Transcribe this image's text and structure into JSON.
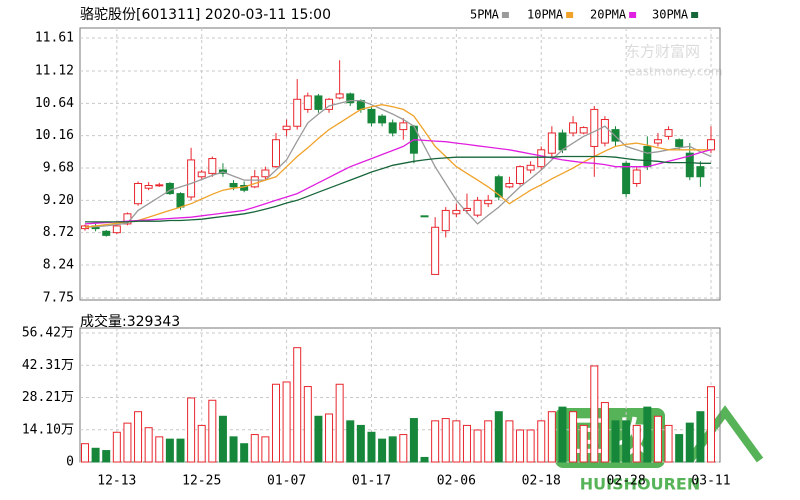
{
  "chart_data": {
    "type": "candlestick",
    "title": "骆驼股份[601311] 2020-03-11 15:00",
    "categories": [
      null,
      null,
      null,
      "12-13",
      null,
      null,
      null,
      null,
      null,
      null,
      null,
      "12-25",
      null,
      null,
      null,
      null,
      null,
      null,
      null,
      "01-07",
      null,
      null,
      null,
      null,
      null,
      null,
      null,
      "01-17",
      null,
      null,
      null,
      null,
      null,
      null,
      null,
      "02-06",
      null,
      null,
      null,
      null,
      null,
      null,
      null,
      "02-18",
      null,
      null,
      null,
      null,
      null,
      null,
      null,
      "02-28",
      null,
      null,
      null,
      null,
      null,
      null,
      null,
      "03-11"
    ],
    "open": [
      8.78,
      8.82,
      8.74,
      8.72,
      8.85,
      9.15,
      9.38,
      9.42,
      9.45,
      9.3,
      9.25,
      9.55,
      9.6,
      9.65,
      9.45,
      9.42,
      9.4,
      9.55,
      9.7,
      10.25,
      10.3,
      10.55,
      10.75,
      10.55,
      10.72,
      10.78,
      10.68,
      10.55,
      10.45,
      10.35,
      10.25,
      10.3,
      8.97,
      8.1,
      8.75,
      9.0,
      9.05,
      8.98,
      9.15,
      9.55,
      9.4,
      9.45,
      9.65,
      9.7,
      9.9,
      10.2,
      10.2,
      10.2,
      10.0,
      10.05,
      10.25,
      9.75,
      9.45,
      10.0,
      10.05,
      10.15,
      10.1,
      9.9,
      9.7,
      9.95
    ],
    "high": [
      8.84,
      8.85,
      8.76,
      8.84,
      9.02,
      9.48,
      9.47,
      9.46,
      9.47,
      9.32,
      9.98,
      9.65,
      9.85,
      9.75,
      9.5,
      9.48,
      9.65,
      9.7,
      10.2,
      10.4,
      11.0,
      10.8,
      10.78,
      10.72,
      11.28,
      10.8,
      10.7,
      10.6,
      10.48,
      10.4,
      10.42,
      10.32,
      8.97,
      8.95,
      9.1,
      9.15,
      9.3,
      9.25,
      9.28,
      9.58,
      9.55,
      9.72,
      9.78,
      10.0,
      10.3,
      10.25,
      10.45,
      10.3,
      10.6,
      10.45,
      10.3,
      9.78,
      9.7,
      10.15,
      10.2,
      10.3,
      10.12,
      10.05,
      9.78,
      10.3
    ],
    "low": [
      8.75,
      8.74,
      8.66,
      8.7,
      8.83,
      9.12,
      9.35,
      9.4,
      9.28,
      9.06,
      9.2,
      9.5,
      9.55,
      9.55,
      9.35,
      9.32,
      9.38,
      9.5,
      9.68,
      10.15,
      10.25,
      10.5,
      10.5,
      10.5,
      10.7,
      10.6,
      10.5,
      10.3,
      10.3,
      10.15,
      10.1,
      9.75,
      8.97,
      8.1,
      8.65,
      8.95,
      9.0,
      8.95,
      9.1,
      9.2,
      9.38,
      9.42,
      9.6,
      9.65,
      9.85,
      9.9,
      10.15,
      10.18,
      9.55,
      10.0,
      10.0,
      9.25,
      9.4,
      9.65,
      10.0,
      10.1,
      9.95,
      9.5,
      9.4,
      9.9
    ],
    "close": [
      8.82,
      8.78,
      8.68,
      8.82,
      9.0,
      9.45,
      9.42,
      9.43,
      9.3,
      9.1,
      9.8,
      9.62,
      9.82,
      9.6,
      9.4,
      9.35,
      9.55,
      9.65,
      10.1,
      10.3,
      10.7,
      10.75,
      10.55,
      10.7,
      10.78,
      10.65,
      10.55,
      10.35,
      10.35,
      10.2,
      10.35,
      9.9,
      8.97,
      8.8,
      9.05,
      9.05,
      9.08,
      9.2,
      9.2,
      9.25,
      9.45,
      9.7,
      9.72,
      9.95,
      10.2,
      9.95,
      10.35,
      10.28,
      10.55,
      10.4,
      10.08,
      9.3,
      9.65,
      9.7,
      10.1,
      10.25,
      10.0,
      9.55,
      9.55,
      10.1
    ],
    "ylim": [
      7.75,
      11.61
    ],
    "yticks": [
      7.75,
      8.24,
      8.72,
      {
        "value": 9.2,
        "label": "9.20"
      },
      9.68,
      10.16,
      10.64,
      11.12,
      11.61
    ],
    "grid": true,
    "up_color": "#e8262d",
    "down_color": "#16873a",
    "ma_series": [
      {
        "name": "5PMA",
        "color": "#9a9a9a",
        "values": [
          8.8,
          8.81,
          8.82,
          8.84,
          8.86,
          9.05,
          9.15,
          9.25,
          9.35,
          9.4,
          9.45,
          9.51,
          9.57,
          9.62,
          9.56,
          9.5,
          9.5,
          9.5,
          9.65,
          9.8,
          10.08,
          10.35,
          10.48,
          10.6,
          10.64,
          10.68,
          10.68,
          10.62,
          10.55,
          10.48,
          10.4,
          10.3,
          10.0,
          9.7,
          9.45,
          9.2,
          9.02,
          8.85,
          8.98,
          9.1,
          9.25,
          9.4,
          9.52,
          9.65,
          9.8,
          9.95,
          10.05,
          10.15,
          10.22,
          10.3,
          10.15,
          10.0,
          9.95,
          9.9,
          9.92,
          9.95,
          9.98,
          10.0,
          9.92,
          9.85
        ]
      },
      {
        "name": "10PMA",
        "color": "#f0a22a",
        "values": [
          8.8,
          8.82,
          8.84,
          8.86,
          8.88,
          8.9,
          8.95,
          9.0,
          9.05,
          9.1,
          9.15,
          9.22,
          9.29,
          9.35,
          9.38,
          9.4,
          9.45,
          9.5,
          9.55,
          9.7,
          9.85,
          9.98,
          10.12,
          10.25,
          10.35,
          10.45,
          10.55,
          10.59,
          10.62,
          10.59,
          10.55,
          10.45,
          10.23,
          10.0,
          9.85,
          9.7,
          9.6,
          9.5,
          9.4,
          9.28,
          9.15,
          9.25,
          9.35,
          9.43,
          9.52,
          9.6,
          9.68,
          9.77,
          9.85,
          9.93,
          10.0,
          10.03,
          10.05,
          10.02,
          9.98,
          9.95,
          9.95,
          9.95,
          9.95,
          9.95
        ]
      },
      {
        "name": "20PMA",
        "color": "#e020e0",
        "values": [
          8.85,
          8.86,
          8.87,
          8.88,
          8.89,
          8.9,
          8.91,
          8.92,
          8.93,
          8.94,
          8.95,
          8.97,
          8.99,
          9.01,
          9.03,
          9.05,
          9.1,
          9.15,
          9.2,
          9.25,
          9.3,
          9.38,
          9.46,
          9.54,
          9.62,
          9.7,
          9.76,
          9.82,
          9.88,
          9.94,
          10.0,
          10.1,
          10.09,
          10.08,
          10.07,
          10.05,
          10.03,
          10.01,
          9.99,
          9.97,
          9.95,
          9.92,
          9.89,
          9.86,
          9.83,
          9.8,
          9.78,
          9.76,
          9.75,
          9.73,
          9.7,
          9.7,
          9.7,
          9.7,
          9.74,
          9.78,
          9.82,
          9.86,
          9.91,
          9.95
        ]
      },
      {
        "name": "30PMA",
        "color": "#17663a",
        "values": [
          8.88,
          8.88,
          8.88,
          8.88,
          8.88,
          8.89,
          8.89,
          8.89,
          8.9,
          8.9,
          8.91,
          8.92,
          8.94,
          8.96,
          8.98,
          9.0,
          9.03,
          9.07,
          9.11,
          9.16,
          9.2,
          9.26,
          9.32,
          9.38,
          9.44,
          9.5,
          9.56,
          9.62,
          9.67,
          9.72,
          9.75,
          9.78,
          9.8,
          9.82,
          9.83,
          9.84,
          9.84,
          9.84,
          9.84,
          9.84,
          9.84,
          9.84,
          9.84,
          9.84,
          9.84,
          9.85,
          9.85,
          9.85,
          9.85,
          9.85,
          9.84,
          9.82,
          9.8,
          9.79,
          9.78,
          9.76,
          9.76,
          9.76,
          9.75,
          9.75
        ]
      }
    ],
    "volume": {
      "label": "成交量:329343",
      "values": [
        8,
        6,
        5,
        13,
        17,
        22,
        15,
        11,
        10,
        10,
        28,
        16,
        27,
        20,
        11,
        8,
        12,
        11,
        34,
        35,
        50,
        33,
        20,
        21,
        34,
        18,
        16,
        13,
        10,
        11,
        12,
        19,
        2,
        18,
        19,
        18,
        16,
        14,
        18,
        22,
        18,
        14,
        14,
        18,
        22,
        24,
        22,
        16,
        42,
        26,
        18,
        18,
        16,
        24,
        20,
        16,
        12,
        17,
        22,
        32.93
      ],
      "ylim": [
        0,
        56.42
      ],
      "yticks": [
        0,
        {
          "value": 14.1,
          "label": "14.10万"
        },
        {
          "value": 28.21,
          "label": "28.21万"
        },
        {
          "value": 42.31,
          "label": "42.31万"
        },
        {
          "value": 56.42,
          "label": "56.42万"
        }
      ]
    },
    "watermark": {
      "brand": "东方财富网",
      "site": "eastmoney.com",
      "logo": "回收",
      "logo_sub": "HUISHOUREN"
    }
  }
}
